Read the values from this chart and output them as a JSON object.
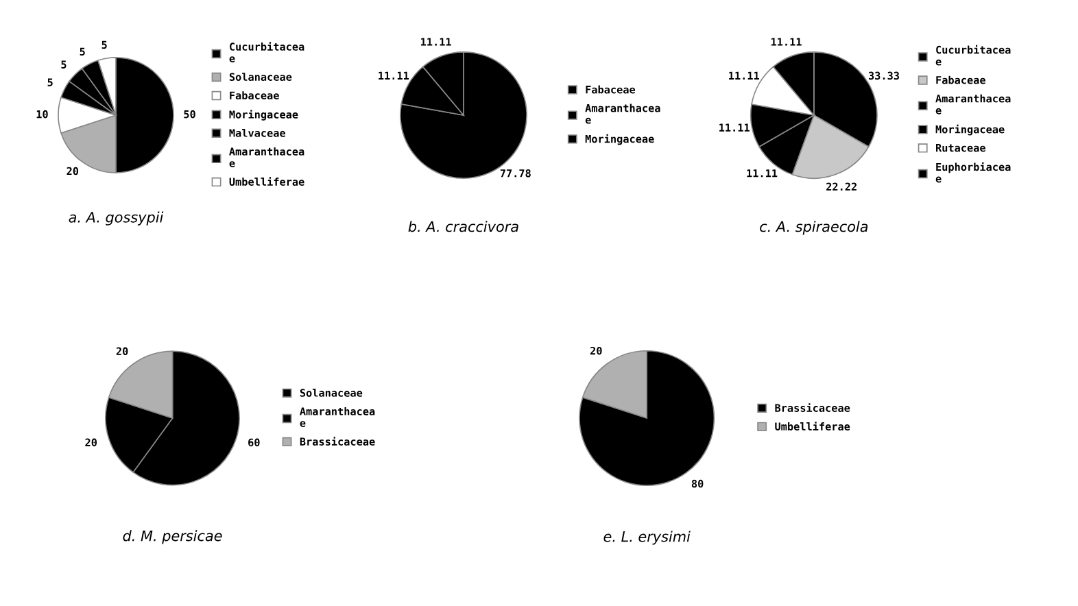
{
  "chart_data": [
    {
      "type": "pie",
      "title": "a. A. gossypii",
      "categories": [
        "Cucurbitaceae",
        "Solanaceae",
        "Fabaceae",
        "Moringaceae",
        "Malvaceae",
        "Amaranthaceae",
        "Umbelliferae"
      ],
      "values": [
        50,
        20,
        10,
        5,
        5,
        5,
        5
      ],
      "colors": [
        "#000000",
        "#b0b0b0",
        "#ffffff",
        "#000000",
        "#000000",
        "#000000",
        "#ffffff"
      ],
      "data_labels": true,
      "legend": "right"
    },
    {
      "type": "pie",
      "title": "b. A. craccivora",
      "categories": [
        "Fabaceae",
        "Amaranthaceae",
        "Moringaceae"
      ],
      "values": [
        77.78,
        11.11,
        11.11
      ],
      "colors": [
        "#000000",
        "#000000",
        "#000000"
      ],
      "data_labels": true,
      "legend": "right"
    },
    {
      "type": "pie",
      "title": "c. A. spiraecola",
      "categories": [
        "Cucurbitaceae",
        "Fabaceae",
        "Amaranthaceae",
        "Moringaceae",
        "Rutaceae",
        "Euphorbiaceae"
      ],
      "values": [
        33.33,
        22.22,
        11.11,
        11.11,
        11.11,
        11.11
      ],
      "colors": [
        "#000000",
        "#c8c8c8",
        "#000000",
        "#000000",
        "#ffffff",
        "#000000"
      ],
      "data_labels": true,
      "legend": "right"
    },
    {
      "type": "pie",
      "title": "d. M. persicae",
      "categories": [
        "Solanaceae",
        "Amaranthaceae",
        "Brassicaceae"
      ],
      "values": [
        60,
        20,
        20
      ],
      "colors": [
        "#000000",
        "#000000",
        "#b0b0b0"
      ],
      "data_labels": true,
      "legend": "right"
    },
    {
      "type": "pie",
      "title": "e. L. erysimi",
      "categories": [
        "Brassicaceae",
        "Umbelliferae"
      ],
      "values": [
        80,
        20
      ],
      "colors": [
        "#000000",
        "#b0b0b0"
      ],
      "data_labels": true,
      "legend": "right"
    }
  ]
}
